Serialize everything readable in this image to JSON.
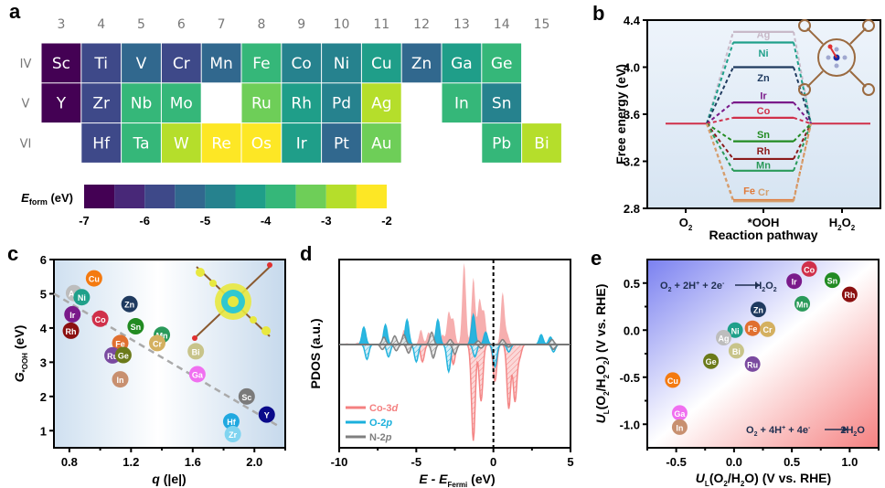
{
  "panel_labels": {
    "a": "a",
    "b": "b",
    "c": "c",
    "d": "d",
    "e": "e"
  },
  "chart_data": [
    {
      "id": "a",
      "type": "heatmap",
      "title": "Formation energy of M-porphyrin (periodic table layout)",
      "group_labels": [
        "3",
        "4",
        "5",
        "6",
        "7",
        "8",
        "9",
        "10",
        "11",
        "12",
        "13",
        "14",
        "15"
      ],
      "period_labels": [
        "IV",
        "V",
        "VI"
      ],
      "colorbar": {
        "label_main": "E",
        "label_sub": "form",
        "label_unit": " (eV)",
        "ticks": [
          "-7",
          "-6",
          "-5",
          "-4",
          "-3",
          "-2"
        ],
        "range": [
          -7,
          -2
        ],
        "colors": [
          "#440154",
          "#482878",
          "#3e4989",
          "#31688e",
          "#26828e",
          "#1f9e89",
          "#35b779",
          "#6ece58",
          "#b5de2b",
          "#fde725"
        ]
      },
      "cells": [
        {
          "symbol": "Sc",
          "period": 0,
          "group": 0,
          "bin": 0
        },
        {
          "symbol": "Ti",
          "period": 0,
          "group": 1,
          "bin": 2
        },
        {
          "symbol": "V",
          "period": 0,
          "group": 2,
          "bin": 3
        },
        {
          "symbol": "Cr",
          "period": 0,
          "group": 3,
          "bin": 2
        },
        {
          "symbol": "Mn",
          "period": 0,
          "group": 4,
          "bin": 3
        },
        {
          "symbol": "Fe",
          "period": 0,
          "group": 5,
          "bin": 6
        },
        {
          "symbol": "Co",
          "period": 0,
          "group": 6,
          "bin": 4
        },
        {
          "symbol": "Ni",
          "period": 0,
          "group": 7,
          "bin": 4
        },
        {
          "symbol": "Cu",
          "period": 0,
          "group": 8,
          "bin": 5
        },
        {
          "symbol": "Zn",
          "period": 0,
          "group": 9,
          "bin": 3
        },
        {
          "symbol": "Ga",
          "period": 0,
          "group": 10,
          "bin": 5
        },
        {
          "symbol": "Ge",
          "period": 0,
          "group": 11,
          "bin": 6
        },
        {
          "symbol": "Y",
          "period": 1,
          "group": 0,
          "bin": 0
        },
        {
          "symbol": "Zr",
          "period": 1,
          "group": 1,
          "bin": 2
        },
        {
          "symbol": "Nb",
          "period": 1,
          "group": 2,
          "bin": 6
        },
        {
          "symbol": "Mo",
          "period": 1,
          "group": 3,
          "bin": 6
        },
        {
          "symbol": "Ru",
          "period": 1,
          "group": 5,
          "bin": 7
        },
        {
          "symbol": "Rh",
          "period": 1,
          "group": 6,
          "bin": 5
        },
        {
          "symbol": "Pd",
          "period": 1,
          "group": 7,
          "bin": 4
        },
        {
          "symbol": "Ag",
          "period": 1,
          "group": 8,
          "bin": 8
        },
        {
          "symbol": "In",
          "period": 1,
          "group": 10,
          "bin": 6
        },
        {
          "symbol": "Sn",
          "period": 1,
          "group": 11,
          "bin": 4
        },
        {
          "symbol": "Hf",
          "period": 2,
          "group": 1,
          "bin": 2
        },
        {
          "symbol": "Ta",
          "period": 2,
          "group": 2,
          "bin": 6
        },
        {
          "symbol": "W",
          "period": 2,
          "group": 3,
          "bin": 8
        },
        {
          "symbol": "Re",
          "period": 2,
          "group": 4,
          "bin": 9
        },
        {
          "symbol": "Os",
          "period": 2,
          "group": 5,
          "bin": 9
        },
        {
          "symbol": "Ir",
          "period": 2,
          "group": 6,
          "bin": 5
        },
        {
          "symbol": "Pt",
          "period": 2,
          "group": 7,
          "bin": 3
        },
        {
          "symbol": "Au",
          "period": 2,
          "group": 8,
          "bin": 7
        },
        {
          "symbol": "Pb",
          "period": 2,
          "group": 11,
          "bin": 6
        },
        {
          "symbol": "Bi",
          "period": 2,
          "group": 12,
          "bin": 8
        }
      ]
    },
    {
      "id": "b",
      "type": "line",
      "title": "Free energy diagram for 2e- ORR",
      "xlabel": "Reaction pathway",
      "ylabel": "Free energy (eV)",
      "ylim": [
        2.8,
        4.4
      ],
      "yticks": [
        "2.8",
        "3.2",
        "3.6",
        "4.0",
        "4.4"
      ],
      "x_categories": [
        {
          "main": "O",
          "sub": "2",
          "tail": ""
        },
        {
          "main": "*OOH",
          "sub": "",
          "tail": ""
        },
        {
          "main": "H",
          "sub": "2",
          "tail": "O"
        },
        {
          "main": "",
          "sub": "2",
          "tail": ""
        }
      ],
      "x_labels": [
        "O2",
        "*OOH",
        "H2O2"
      ],
      "equilibrium_level": 3.52,
      "series": [
        {
          "name": "Ag",
          "ooh": 4.3,
          "color": "#c8b9c8",
          "label_offset": -0.02
        },
        {
          "name": "Ni",
          "ooh": 4.21,
          "color": "#1fa08a",
          "label_offset": -0.09
        },
        {
          "name": "Zn",
          "ooh": 4.0,
          "color": "#1f3a5f",
          "label_offset": -0.09
        },
        {
          "name": "Ir",
          "ooh": 3.7,
          "color": "#7a1a8a",
          "label_offset": 0.06
        },
        {
          "name": "Co",
          "ooh": 3.57,
          "color": "#d0304a",
          "label_offset": 0.06
        },
        {
          "name": "Sn",
          "ooh": 3.37,
          "color": "#228b22",
          "label_offset": 0.06
        },
        {
          "name": "Rh",
          "ooh": 3.22,
          "color": "#8b1a1a",
          "label_offset": 0.07
        },
        {
          "name": "Mn",
          "ooh": 3.12,
          "color": "#2a9a5a",
          "label_offset": 0.05
        },
        {
          "name": "Fe",
          "ooh": 2.87,
          "color": "#e07a3a",
          "label_offset": 0.08
        },
        {
          "name": "Cr",
          "ooh": 2.86,
          "color": "#d4a070",
          "label_offset": 0.08
        }
      ]
    },
    {
      "id": "c",
      "type": "scatter",
      "xlabel": "q (|e|)",
      "ylabel_main": "G",
      "ylabel_sub": "*OOH",
      "ylabel_unit": " (eV)",
      "xlim": [
        0.7,
        2.2
      ],
      "ylim": [
        0.5,
        6
      ],
      "xticks": [
        "0.8",
        "1.2",
        "1.6",
        "2.0"
      ],
      "yticks": [
        "1",
        "2",
        "3",
        "4",
        "5",
        "6"
      ],
      "trendline": {
        "x": [
          0.7,
          2.15
        ],
        "y": [
          5.0,
          1.15
        ]
      },
      "points": [
        {
          "label": "Cu",
          "x": 0.96,
          "y": 5.45,
          "color": "#f47a10"
        },
        {
          "label": "Ag",
          "x": 0.83,
          "y": 5.02,
          "color": "#bdbdbd"
        },
        {
          "label": "Ni",
          "x": 0.88,
          "y": 4.9,
          "color": "#1fa08a"
        },
        {
          "label": "Zn",
          "x": 1.19,
          "y": 4.7,
          "color": "#1f3a5f"
        },
        {
          "label": "Ir",
          "x": 0.82,
          "y": 4.4,
          "color": "#7a1a8a"
        },
        {
          "label": "Co",
          "x": 1.0,
          "y": 4.27,
          "color": "#d0304a"
        },
        {
          "label": "Rh",
          "x": 0.81,
          "y": 3.92,
          "color": "#8b1010"
        },
        {
          "label": "Sn",
          "x": 1.23,
          "y": 4.05,
          "color": "#228b22"
        },
        {
          "label": "Mn",
          "x": 1.4,
          "y": 3.8,
          "color": "#2a9a5a"
        },
        {
          "label": "Cr",
          "x": 1.37,
          "y": 3.56,
          "color": "#d4b060"
        },
        {
          "label": "Fe",
          "x": 1.13,
          "y": 3.56,
          "color": "#e07030"
        },
        {
          "label": "Ru",
          "x": 1.08,
          "y": 3.2,
          "color": "#7a4aa0"
        },
        {
          "label": "Ge",
          "x": 1.15,
          "y": 3.21,
          "color": "#6b7a1a"
        },
        {
          "label": "In",
          "x": 1.13,
          "y": 2.5,
          "color": "#c89070"
        },
        {
          "label": "Bi",
          "x": 1.62,
          "y": 3.32,
          "color": "#c8c48a"
        },
        {
          "label": "Ga",
          "x": 1.63,
          "y": 2.65,
          "color": "#f070f0"
        },
        {
          "label": "Sc",
          "x": 1.95,
          "y": 2.0,
          "color": "#7a7a7a"
        },
        {
          "label": "Y",
          "x": 2.08,
          "y": 1.47,
          "color": "#0a0a8a"
        },
        {
          "label": "Hf",
          "x": 1.85,
          "y": 1.27,
          "color": "#20a8e0"
        },
        {
          "label": "Zr",
          "x": 1.86,
          "y": 0.9,
          "color": "#80d4f0"
        }
      ]
    },
    {
      "id": "d",
      "type": "area",
      "xlabel_main": "E - E",
      "xlabel_sub": "Fermi",
      "xlabel_unit": " (eV)",
      "ylabel": "PDOS (a.u.)",
      "xlim": [
        -10,
        5
      ],
      "xticks": [
        "-10",
        "-5",
        "0",
        "5"
      ],
      "fermi_level": 0,
      "legend_position": "bottom-left",
      "series": [
        {
          "name": "Co-3d",
          "name_main": "Co-3",
          "name_italic": "d",
          "color": "#f48080",
          "up_peaks": [
            [
              -9.5,
              0.05
            ],
            [
              -8.8,
              0.08
            ],
            [
              -5.8,
              0.6
            ],
            [
              -4.7,
              0.6
            ],
            [
              -4.2,
              0.5
            ],
            [
              -3.3,
              0.4
            ],
            [
              -2.9,
              1.3
            ],
            [
              -2.6,
              1.0
            ],
            [
              -1.9,
              3.3
            ],
            [
              -1.3,
              2.7
            ],
            [
              -0.9,
              1.8
            ],
            [
              -0.6,
              1.3
            ],
            [
              0.6,
              2.1
            ],
            [
              0.9,
              0.4
            ]
          ],
          "down_peaks": [
            [
              -5.5,
              0.3
            ],
            [
              -4.6,
              0.7
            ],
            [
              -2.6,
              0.8
            ],
            [
              -1.3,
              3.9
            ],
            [
              -0.8,
              2.3
            ],
            [
              0.1,
              1.5
            ],
            [
              1.0,
              2.6
            ],
            [
              1.4,
              2.3
            ],
            [
              1.7,
              0.5
            ]
          ]
        },
        {
          "name": "O-2p",
          "name_main": "O-2",
          "name_italic": "p",
          "color": "#1ab0dc",
          "up_peaks": [
            [
              -8.4,
              0.7
            ],
            [
              -7.0,
              0.8
            ],
            [
              -5.6,
              1.0
            ],
            [
              -3.6,
              1.0
            ],
            [
              -1.3,
              1.2
            ],
            [
              -0.5,
              0.5
            ],
            [
              3.1,
              0.4
            ],
            [
              3.7,
              0.3
            ]
          ],
          "down_peaks": [
            [
              -8.2,
              0.6
            ],
            [
              -6.8,
              0.5
            ],
            [
              -5.0,
              0.7
            ],
            [
              -2.9,
              1.1
            ],
            [
              -1.2,
              0.5
            ],
            [
              0.1,
              0.9
            ],
            [
              1.0,
              0.3
            ],
            [
              3.9,
              0.3
            ]
          ]
        },
        {
          "name": "N-2p",
          "name_main": "N-2",
          "name_italic": "p",
          "color": "#7f7f7f",
          "up_peaks": [
            [
              -7.1,
              0.3
            ],
            [
              -6.4,
              0.35
            ],
            [
              -5.8,
              0.4
            ],
            [
              -4.0,
              0.5
            ],
            [
              -2.8,
              0.2
            ],
            [
              -1.0,
              0.15
            ],
            [
              0.6,
              0.2
            ],
            [
              3.8,
              0.2
            ]
          ],
          "down_peaks": [
            [
              -7.2,
              0.2
            ],
            [
              -6.3,
              0.25
            ],
            [
              -5.5,
              0.35
            ],
            [
              -3.9,
              0.55
            ],
            [
              -2.5,
              0.4
            ],
            [
              -0.8,
              0.15
            ],
            [
              1.0,
              0.1
            ],
            [
              3.9,
              0.2
            ]
          ]
        }
      ]
    },
    {
      "id": "e",
      "type": "scatter",
      "xlabel": "U_L(O2/H2O) (V vs. RHE)",
      "ylabel": "U_L(O2/H2O2) (V vs. RHE)",
      "xlim": [
        -0.75,
        1.25
      ],
      "ylim": [
        -1.25,
        0.75
      ],
      "xticks": [
        "-0.5",
        "0.0",
        "0.5",
        "1.0"
      ],
      "yticks": [
        "-1.0",
        "-0.5",
        "0.0",
        "0.5"
      ],
      "annotations": [
        {
          "text": "O2 + 2H+ + 2e- -> H2O2",
          "region": "top-left"
        },
        {
          "text": "O2 + 4H+ + 4e- -> 2H2O",
          "region": "bottom-right"
        }
      ],
      "points": [
        {
          "label": "Co",
          "x": 0.65,
          "y": 0.65,
          "color": "#d0304a"
        },
        {
          "label": "Ir",
          "x": 0.52,
          "y": 0.52,
          "color": "#7a1a8a"
        },
        {
          "label": "Sn",
          "x": 0.85,
          "y": 0.53,
          "color": "#228b22"
        },
        {
          "label": "Rh",
          "x": 1.0,
          "y": 0.38,
          "color": "#8b1010"
        },
        {
          "label": "Mn",
          "x": 0.59,
          "y": 0.28,
          "color": "#2a9a5a"
        },
        {
          "label": "Zn",
          "x": 0.21,
          "y": 0.22,
          "color": "#1f3a5f"
        },
        {
          "label": "Ni",
          "x": 0.01,
          "y": 0.0,
          "color": "#1fa08a"
        },
        {
          "label": "Fe",
          "x": 0.16,
          "y": 0.02,
          "color": "#e07030"
        },
        {
          "label": "Cr",
          "x": 0.29,
          "y": 0.01,
          "color": "#d4b060"
        },
        {
          "label": "Ag",
          "x": -0.09,
          "y": -0.08,
          "color": "#bdbdbd"
        },
        {
          "label": "Bi",
          "x": 0.02,
          "y": -0.22,
          "color": "#c8c48a"
        },
        {
          "label": "Ge",
          "x": -0.2,
          "y": -0.33,
          "color": "#6b7a1a"
        },
        {
          "label": "Ru",
          "x": 0.16,
          "y": -0.36,
          "color": "#7a4aa0"
        },
        {
          "label": "Cu",
          "x": -0.53,
          "y": -0.53,
          "color": "#f47a10"
        },
        {
          "label": "Ga",
          "x": -0.47,
          "y": -0.88,
          "color": "#f070f0"
        },
        {
          "label": "In",
          "x": -0.47,
          "y": -1.03,
          "color": "#c89070"
        }
      ]
    }
  ],
  "texts": {
    "b_xlabel": "Reaction pathway",
    "b_ylabel": "Free energy (eV)",
    "c_xlabel_q": "q",
    "c_xlabel_rest": " (|e|)",
    "d_ylabel": "PDOS (a.u.)",
    "e_ann1": {
      "a": "O",
      "a_sub": "2",
      "b": " + 2H",
      "b_sup": "+",
      "c": " + 2e",
      "c_sup": "-",
      "d": " H",
      "d_sub": "2",
      "e": "O",
      "e_sub": "2"
    },
    "e_ann2": {
      "a": "O",
      "a_sub": "2",
      "b": " + 4H",
      "b_sup": "+",
      "c": " + 4e",
      "c_sup": "-",
      "d": " 2H",
      "d_sub": "2",
      "e": "O"
    },
    "e_xlabel": {
      "u": "U",
      "u_sub": "L",
      "a": "(O",
      "a_sub": "2",
      "b": "/H",
      "b_sub": "2",
      "c": "O) (V vs. RHE)"
    },
    "e_ylabel": {
      "u": "U",
      "u_sub": "L",
      "a": "(O",
      "a_sub": "2",
      "b": "/H",
      "b_sub": "2",
      "c": "O",
      "c_sub": "2",
      "d": ") (V vs. RHE)"
    }
  }
}
